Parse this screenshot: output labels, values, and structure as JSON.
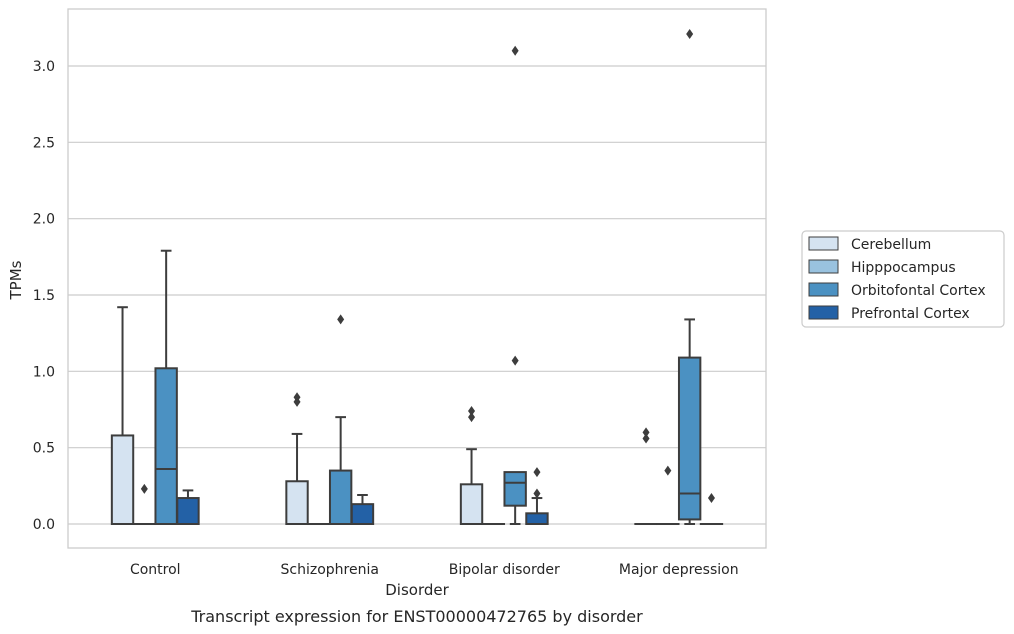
{
  "chart_data": {
    "type": "box",
    "caption": "Transcript expression for ENST00000472765 by disorder",
    "xlabel": "Disorder",
    "ylabel": "TPMs",
    "ylim": [
      -0.16,
      3.38
    ],
    "yticks": [
      0.0,
      0.5,
      1.0,
      1.5,
      2.0,
      2.5,
      3.0
    ],
    "ytick_labels": [
      "0.0",
      "0.5",
      "1.0",
      "1.5",
      "2.0",
      "2.5",
      "3.0"
    ],
    "grid": "horizontal",
    "legend_position": "right",
    "categories": [
      "Control",
      "Schizophrenia",
      "Bipolar disorder",
      "Major depression"
    ],
    "series": [
      {
        "name": "Cerebellum",
        "color": "#d5e3f1",
        "boxes": [
          {
            "whislo": 0.0,
            "q1": 0.0,
            "med": 0.0,
            "q3": 0.58,
            "whishi": 1.42,
            "fliers": []
          },
          {
            "whislo": 0.0,
            "q1": 0.0,
            "med": 0.0,
            "q3": 0.28,
            "whishi": 0.59,
            "fliers": [
              0.8,
              0.83
            ]
          },
          {
            "whislo": 0.0,
            "q1": 0.0,
            "med": 0.0,
            "q3": 0.26,
            "whishi": 0.49,
            "fliers": [
              0.7,
              0.74
            ]
          },
          {
            "whislo": 0.0,
            "q1": 0.0,
            "med": 0.0,
            "q3": 0.0,
            "whishi": 0.0,
            "fliers": [
              0.56,
              0.6
            ]
          }
        ]
      },
      {
        "name": "Hipppocampus",
        "color": "#99c2df",
        "boxes": [
          {
            "whislo": 0.0,
            "q1": 0.0,
            "med": 0.0,
            "q3": 0.0,
            "whishi": 0.0,
            "fliers": [
              0.23
            ]
          },
          {
            "whislo": 0.0,
            "q1": 0.0,
            "med": 0.0,
            "q3": 0.0,
            "whishi": 0.0,
            "fliers": []
          },
          {
            "whislo": 0.0,
            "q1": 0.0,
            "med": 0.0,
            "q3": 0.0,
            "whishi": 0.0,
            "fliers": []
          },
          {
            "whislo": 0.0,
            "q1": 0.0,
            "med": 0.0,
            "q3": 0.0,
            "whishi": 0.0,
            "fliers": [
              0.35
            ]
          }
        ]
      },
      {
        "name": "Orbitofontal Cortex",
        "color": "#4b91c2",
        "boxes": [
          {
            "whislo": 0.0,
            "q1": 0.0,
            "med": 0.36,
            "q3": 1.02,
            "whishi": 1.79,
            "fliers": []
          },
          {
            "whislo": 0.0,
            "q1": 0.0,
            "med": 0.0,
            "q3": 0.35,
            "whishi": 0.7,
            "fliers": [
              1.34
            ]
          },
          {
            "whislo": 0.0,
            "q1": 0.12,
            "med": 0.27,
            "q3": 0.34,
            "whishi": 0.34,
            "fliers": [
              1.07,
              3.1
            ]
          },
          {
            "whislo": 0.0,
            "q1": 0.03,
            "med": 0.2,
            "q3": 1.09,
            "whishi": 1.34,
            "fliers": [
              3.21
            ]
          }
        ]
      },
      {
        "name": "Prefrontal Cortex",
        "color": "#2361a6",
        "boxes": [
          {
            "whislo": 0.0,
            "q1": 0.0,
            "med": 0.0,
            "q3": 0.17,
            "whishi": 0.22,
            "fliers": []
          },
          {
            "whislo": 0.0,
            "q1": 0.0,
            "med": 0.0,
            "q3": 0.13,
            "whishi": 0.19,
            "fliers": []
          },
          {
            "whislo": 0.0,
            "q1": 0.0,
            "med": 0.0,
            "q3": 0.07,
            "whishi": 0.17,
            "fliers": [
              0.2,
              0.34
            ]
          },
          {
            "whislo": 0.0,
            "q1": 0.0,
            "med": 0.0,
            "q3": 0.0,
            "whishi": 0.0,
            "fliers": [
              0.17
            ]
          }
        ]
      }
    ]
  }
}
